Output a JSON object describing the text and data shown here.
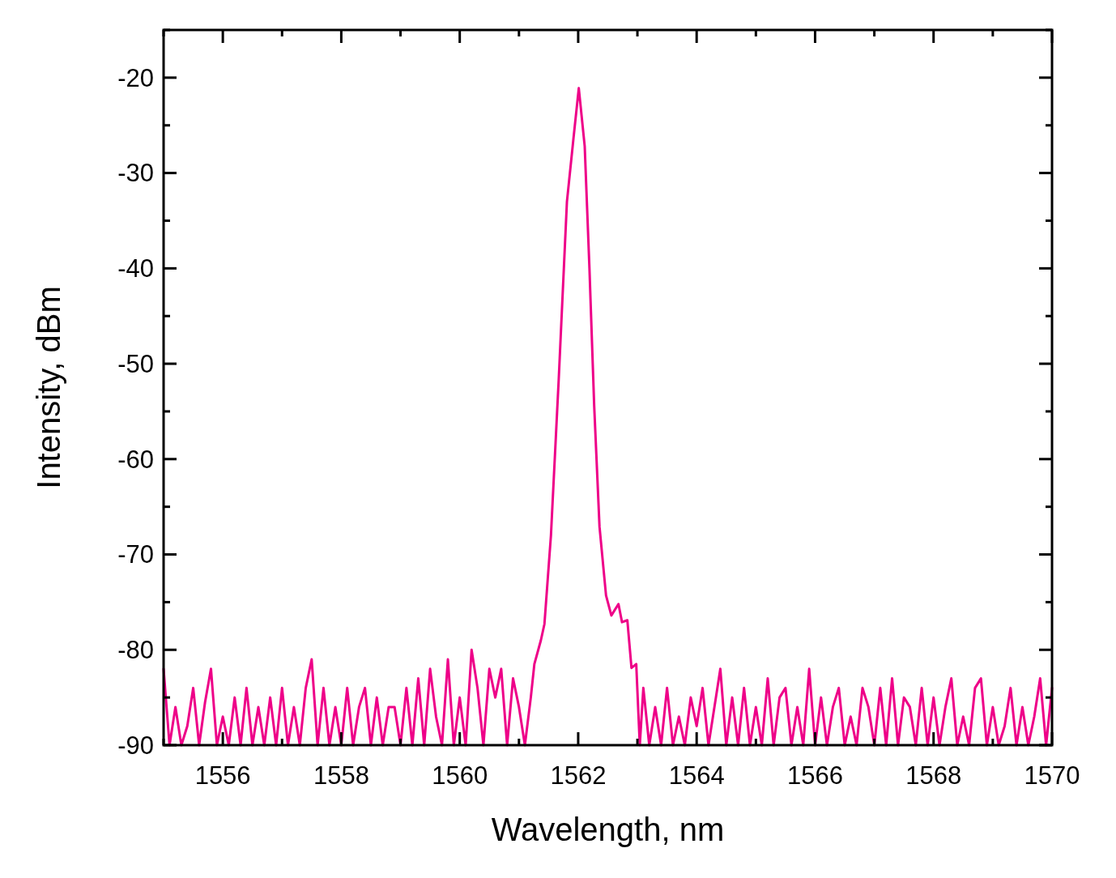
{
  "chart_data": {
    "type": "line",
    "xlabel": "Wavelength, nm",
    "ylabel": "Intensity, dBm",
    "x": [
      1555.0,
      1555.1,
      1555.2,
      1555.3,
      1555.4,
      1555.5,
      1555.6,
      1555.7,
      1555.8,
      1555.9,
      1556.0,
      1556.1,
      1556.2,
      1556.3,
      1556.4,
      1556.5,
      1556.6,
      1556.7,
      1556.8,
      1556.9,
      1557.0,
      1557.1,
      1557.2,
      1557.3,
      1557.4,
      1557.5,
      1557.6,
      1557.7,
      1557.8,
      1557.9,
      1558.0,
      1558.1,
      1558.2,
      1558.3,
      1558.4,
      1558.5,
      1558.6,
      1558.7,
      1558.8,
      1558.9,
      1559.0,
      1559.1,
      1559.2,
      1559.3,
      1559.4,
      1559.5,
      1559.6,
      1559.7,
      1559.8,
      1559.9,
      1560.0,
      1560.1,
      1560.2,
      1560.3,
      1560.4,
      1560.5,
      1560.6,
      1560.7,
      1560.8,
      1560.9,
      1561.0,
      1561.1,
      1561.2,
      1561.26,
      1561.37,
      1561.43,
      1561.54,
      1561.67,
      1561.81,
      1561.92,
      1562.01,
      1562.11,
      1562.19,
      1562.27,
      1562.36,
      1562.47,
      1562.56,
      1562.68,
      1562.74,
      1562.83,
      1562.9,
      1562.98,
      1563.04,
      1563.1,
      1563.2,
      1563.3,
      1563.4,
      1563.5,
      1563.6,
      1563.7,
      1563.8,
      1563.9,
      1564.0,
      1564.1,
      1564.2,
      1564.3,
      1564.4,
      1564.5,
      1564.6,
      1564.7,
      1564.8,
      1564.9,
      1565.0,
      1565.1,
      1565.2,
      1565.3,
      1565.4,
      1565.5,
      1565.6,
      1565.7,
      1565.8,
      1565.9,
      1566.0,
      1566.1,
      1566.2,
      1566.3,
      1566.4,
      1566.5,
      1566.6,
      1566.7,
      1566.8,
      1566.9,
      1567.0,
      1567.1,
      1567.2,
      1567.3,
      1567.4,
      1567.5,
      1567.6,
      1567.7,
      1567.8,
      1567.9,
      1568.0,
      1568.1,
      1568.2,
      1568.3,
      1568.4,
      1568.5,
      1568.6,
      1568.7,
      1568.8,
      1568.9,
      1569.0,
      1569.1,
      1569.2,
      1569.3,
      1569.4,
      1569.5,
      1569.6,
      1569.7,
      1569.8,
      1569.9,
      1570.0
    ],
    "series": [
      {
        "color": "#ee0088",
        "values": [
          -82,
          -90,
          -86,
          -90,
          -88,
          -84,
          -90,
          -85.5,
          -82,
          -90,
          -87,
          -90,
          -85,
          -90,
          -84,
          -90,
          -86,
          -90,
          -85,
          -90,
          -84,
          -90,
          -86,
          -90,
          -84,
          -81,
          -90,
          -84,
          -90,
          -86,
          -90,
          -84,
          -90,
          -86,
          -84,
          -90,
          -85,
          -90,
          -86,
          -86,
          -90,
          -84,
          -90,
          -83,
          -90,
          -82,
          -87,
          -90,
          -81,
          -90,
          -85,
          -90,
          -80,
          -84,
          -90,
          -82,
          -85,
          -82,
          -90,
          -83,
          -86,
          -90,
          -85,
          -81.5,
          -79,
          -77.3,
          -68,
          -51.8,
          -33,
          -26.4,
          -21.1,
          -27.2,
          -40,
          -54.4,
          -67.1,
          -74.3,
          -76.4,
          -75.2,
          -77.1,
          -76.9,
          -81.9,
          -81.5,
          -90,
          -84,
          -90,
          -86,
          -90,
          -84,
          -90,
          -87,
          -90,
          -85,
          -88,
          -84,
          -90,
          -86,
          -82,
          -90,
          -85,
          -90,
          -84,
          -90,
          -86,
          -90,
          -83,
          -90,
          -85,
          -84,
          -90,
          -86,
          -90,
          -82,
          -90,
          -85,
          -90,
          -86,
          -84,
          -90,
          -87,
          -90,
          -84,
          -86,
          -90,
          -84,
          -90,
          -83,
          -90,
          -85,
          -86,
          -90,
          -84,
          -90,
          -85,
          -90,
          -86,
          -83,
          -90,
          -87,
          -90,
          -84,
          -83,
          -90,
          -86,
          -90,
          -88,
          -84,
          -90,
          -86,
          -90,
          -87,
          -83,
          -90,
          -84
        ]
      }
    ],
    "xlim": [
      1555,
      1570
    ],
    "xticks": [
      {
        "value": 1555,
        "label": null
      },
      1556,
      {
        "value": 1557,
        "label": null
      },
      1558,
      {
        "value": 1559,
        "label": null
      },
      1560,
      {
        "value": 1561,
        "label": null
      },
      1562,
      {
        "value": 1563,
        "label": null
      },
      1564,
      {
        "value": 1565,
        "label": null
      },
      1566,
      {
        "value": 1567,
        "label": null
      },
      1568,
      {
        "value": 1569,
        "label": null
      },
      1570
    ],
    "ylim": [
      -90,
      -15
    ],
    "yticks": [
      -90,
      {
        "value": -85,
        "label": null
      },
      -80,
      {
        "value": -75,
        "label": null
      },
      -70,
      {
        "value": -65,
        "label": null
      },
      -60,
      {
        "value": -55,
        "label": null
      },
      -50,
      {
        "value": -45,
        "label": null
      },
      -40,
      {
        "value": -35,
        "label": null
      },
      -30,
      {
        "value": -25,
        "label": null
      },
      -20,
      {
        "value": -15,
        "label": null
      }
    ],
    "grid": false,
    "line_style": "solid"
  }
}
